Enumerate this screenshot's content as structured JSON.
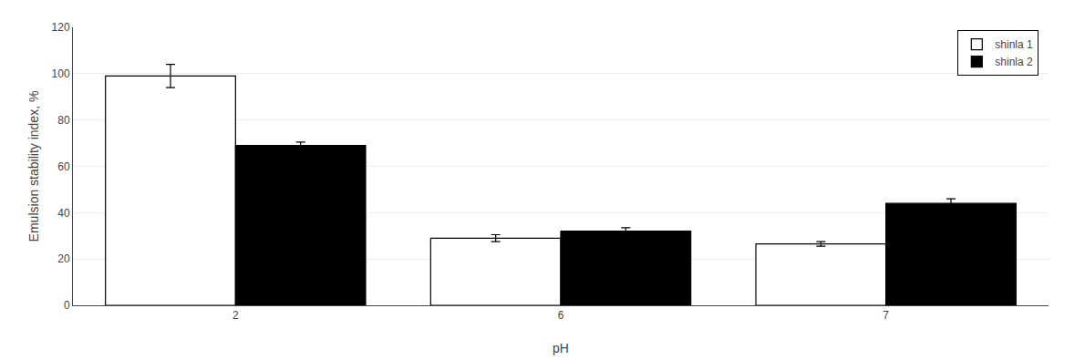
{
  "chart_data": {
    "type": "bar",
    "xlabel": "pH",
    "ylabel": "Emulsion stability index, %",
    "categories": [
      "2",
      "6",
      "7"
    ],
    "series": [
      {
        "name": "shinla 1",
        "color": "#ffffff",
        "values": [
          99.0,
          29.0,
          26.5
        ],
        "errors": [
          5.0,
          1.5,
          1.0
        ]
      },
      {
        "name": "shinla 2",
        "color": "#000000",
        "values": [
          69.0,
          32.0,
          44.0
        ],
        "errors": [
          1.5,
          1.5,
          2.0
        ]
      }
    ],
    "ylim": [
      0,
      120
    ],
    "yticks": [
      0,
      20,
      40,
      60,
      80,
      100,
      120
    ],
    "grid": true,
    "legend": "upper right"
  }
}
